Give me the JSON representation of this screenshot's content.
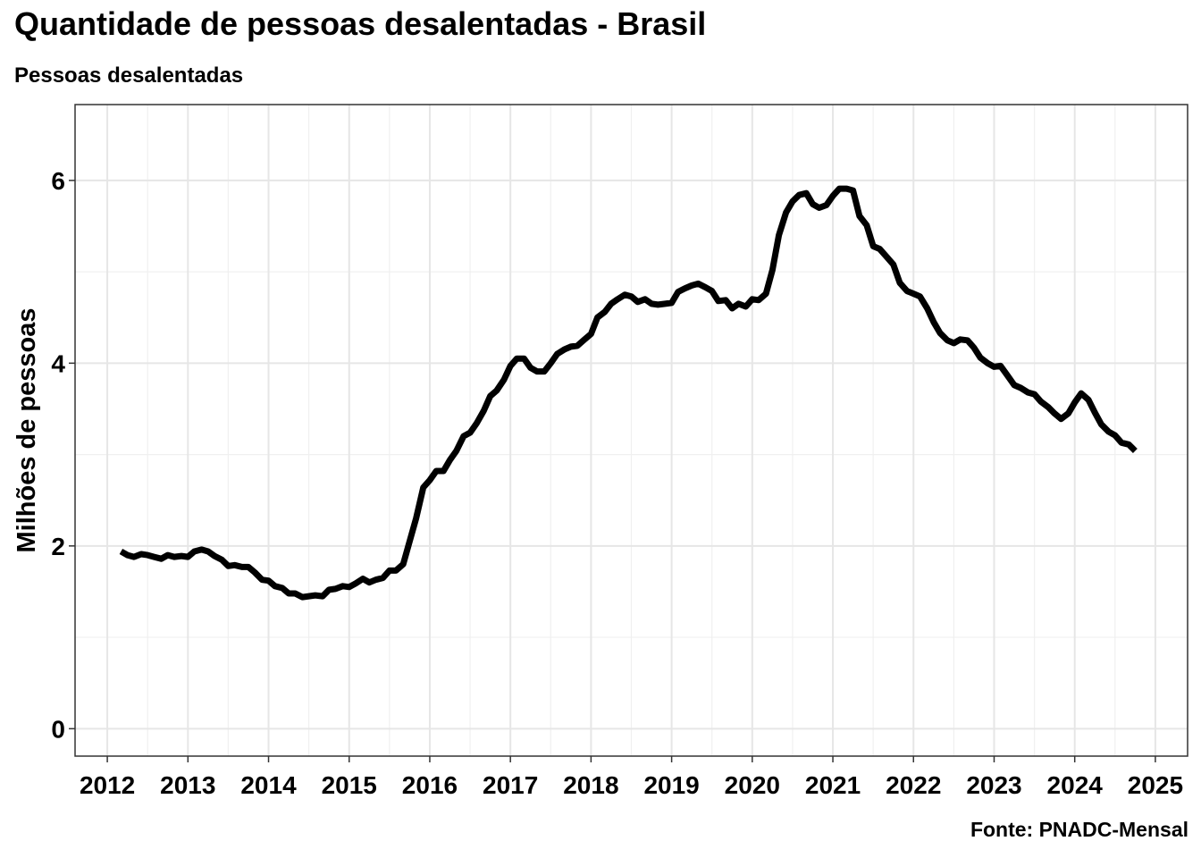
{
  "chart_data": {
    "type": "line",
    "title": "Quantidade de pessoas desalentadas - Brasil",
    "subtitle": "Pessoas desalentadas",
    "xlabel": "",
    "ylabel": "Milhões de pessoas",
    "caption": "Fonte: PNADC-Mensal",
    "xlim": [
      2011.6,
      2025.4
    ],
    "ylim": [
      -0.3,
      6.83
    ],
    "x_ticks": [
      2012,
      2013,
      2014,
      2015,
      2016,
      2017,
      2018,
      2019,
      2020,
      2021,
      2022,
      2023,
      2024,
      2025
    ],
    "x_tick_labels": [
      "2012",
      "2013",
      "2014",
      "2015",
      "2016",
      "2017",
      "2018",
      "2019",
      "2020",
      "2021",
      "2022",
      "2023",
      "2024",
      "2025"
    ],
    "y_ticks": [
      0,
      2,
      4,
      6
    ],
    "y_tick_labels": [
      "0",
      "2",
      "4",
      "6"
    ],
    "grid": true,
    "legend": "none",
    "series": [
      {
        "color": "#000000",
        "x": [
          2012.17,
          2012.25,
          2012.33,
          2012.42,
          2012.5,
          2012.58,
          2012.67,
          2012.75,
          2012.83,
          2012.92,
          2013.0,
          2013.08,
          2013.17,
          2013.25,
          2013.33,
          2013.42,
          2013.5,
          2013.58,
          2013.67,
          2013.75,
          2013.83,
          2013.92,
          2014.0,
          2014.08,
          2014.17,
          2014.25,
          2014.33,
          2014.42,
          2014.5,
          2014.58,
          2014.67,
          2014.75,
          2014.83,
          2014.92,
          2015.0,
          2015.08,
          2015.17,
          2015.25,
          2015.33,
          2015.42,
          2015.5,
          2015.58,
          2015.67,
          2015.75,
          2015.83,
          2015.92,
          2016.0,
          2016.08,
          2016.17,
          2016.25,
          2016.33,
          2016.42,
          2016.5,
          2016.58,
          2016.67,
          2016.75,
          2016.83,
          2016.92,
          2017.0,
          2017.08,
          2017.17,
          2017.25,
          2017.33,
          2017.42,
          2017.5,
          2017.58,
          2017.67,
          2017.75,
          2017.83,
          2017.92,
          2018.0,
          2018.08,
          2018.17,
          2018.25,
          2018.33,
          2018.42,
          2018.5,
          2018.58,
          2018.67,
          2018.75,
          2018.83,
          2018.92,
          2019.0,
          2019.08,
          2019.17,
          2019.25,
          2019.33,
          2019.42,
          2019.5,
          2019.58,
          2019.67,
          2019.75,
          2019.83,
          2019.92,
          2020.0,
          2020.08,
          2020.17,
          2020.25,
          2020.33,
          2020.42,
          2020.5,
          2020.58,
          2020.67,
          2020.75,
          2020.83,
          2020.92,
          2021.0,
          2021.08,
          2021.17,
          2021.25,
          2021.33,
          2021.42,
          2021.5,
          2021.58,
          2021.67,
          2021.75,
          2021.83,
          2021.92,
          2022.0,
          2022.08,
          2022.17,
          2022.25,
          2022.33,
          2022.42,
          2022.5,
          2022.58,
          2022.67,
          2022.75,
          2022.83,
          2022.92,
          2023.0,
          2023.08,
          2023.17,
          2023.25,
          2023.33,
          2023.42,
          2023.5,
          2023.58,
          2023.67,
          2023.75,
          2023.83,
          2023.92,
          2024.0,
          2024.08,
          2024.17,
          2024.25,
          2024.33,
          2024.42,
          2024.5,
          2024.58,
          2024.67,
          2024.75
        ],
        "y": [
          1.94,
          1.9,
          1.88,
          1.91,
          1.9,
          1.88,
          1.86,
          1.9,
          1.88,
          1.89,
          1.88,
          1.94,
          1.96,
          1.94,
          1.89,
          1.85,
          1.78,
          1.79,
          1.77,
          1.77,
          1.71,
          1.63,
          1.62,
          1.56,
          1.54,
          1.48,
          1.48,
          1.44,
          1.45,
          1.46,
          1.45,
          1.52,
          1.53,
          1.56,
          1.55,
          1.59,
          1.64,
          1.6,
          1.63,
          1.65,
          1.73,
          1.73,
          1.8,
          2.05,
          2.3,
          2.64,
          2.72,
          2.82,
          2.82,
          2.94,
          3.04,
          3.2,
          3.24,
          3.34,
          3.48,
          3.64,
          3.7,
          3.82,
          3.97,
          4.05,
          4.05,
          3.95,
          3.91,
          3.91,
          4.0,
          4.1,
          4.15,
          4.18,
          4.19,
          4.26,
          4.32,
          4.5,
          4.56,
          4.65,
          4.7,
          4.75,
          4.73,
          4.67,
          4.7,
          4.65,
          4.64,
          4.65,
          4.66,
          4.78,
          4.82,
          4.85,
          4.87,
          4.83,
          4.79,
          4.68,
          4.69,
          4.6,
          4.65,
          4.62,
          4.7,
          4.69,
          4.76,
          5.02,
          5.4,
          5.65,
          5.77,
          5.84,
          5.86,
          5.74,
          5.7,
          5.73,
          5.83,
          5.91,
          5.91,
          5.89,
          5.61,
          5.51,
          5.28,
          5.25,
          5.16,
          5.08,
          4.88,
          4.79,
          4.76,
          4.73,
          4.6,
          4.45,
          4.33,
          4.25,
          4.22,
          4.26,
          4.25,
          4.17,
          4.06,
          4.0,
          3.96,
          3.97,
          3.86,
          3.76,
          3.73,
          3.68,
          3.66,
          3.58,
          3.52,
          3.45,
          3.39,
          3.45,
          3.57,
          3.67,
          3.6,
          3.46,
          3.33,
          3.25,
          3.21,
          3.13,
          3.11,
          3.04
        ]
      }
    ]
  }
}
